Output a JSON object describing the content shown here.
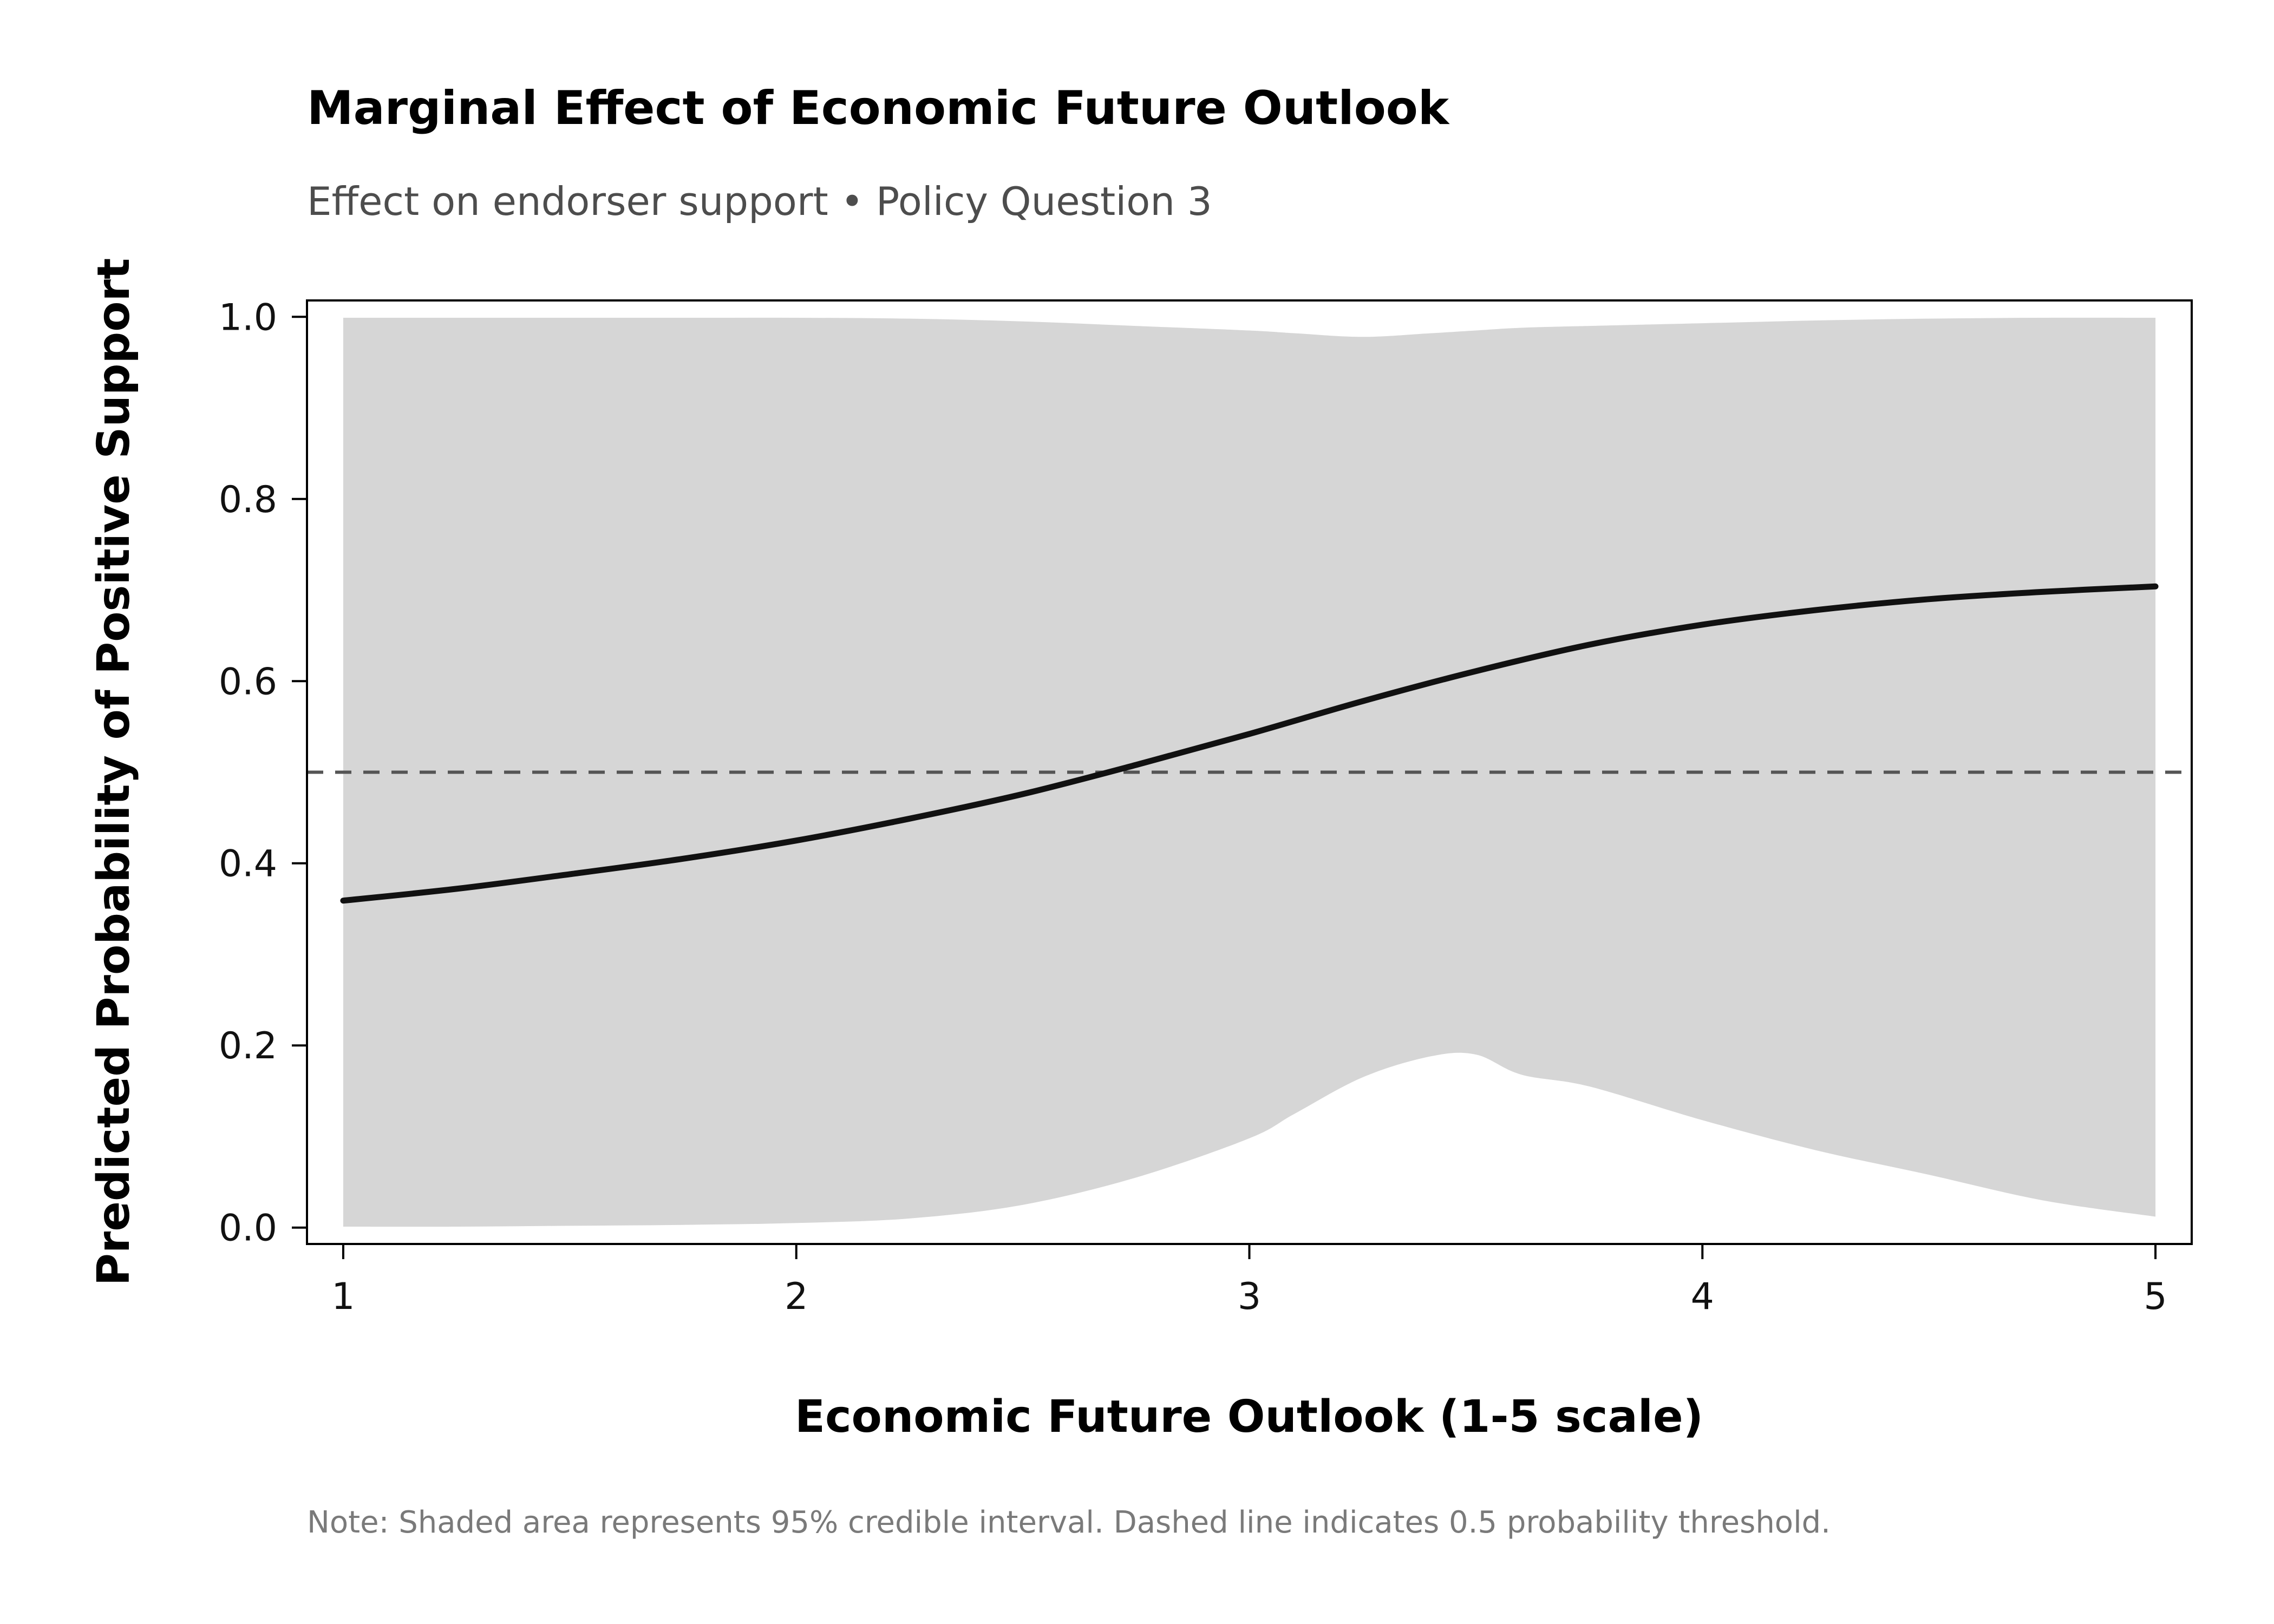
{
  "header": {
    "title": "Marginal Effect of Economic Future Outlook",
    "subtitle": "Effect on endorser support • Policy Question 3"
  },
  "footer": {
    "note": "Note: Shaded area represents 95% credible interval. Dashed line indicates 0.5 probability threshold."
  },
  "colors": {
    "line": "#111111",
    "band": "#d6d6d6",
    "threshold": "#555555",
    "axis": "#000000"
  },
  "chart_data": {
    "type": "line",
    "title": "Marginal Effect of Economic Future Outlook",
    "subtitle": "Effect on endorser support • Policy Question 3",
    "xlabel": "Economic Future Outlook (1-5 scale)",
    "ylabel": "Predicted Probability of Positive Support",
    "xlim": [
      0.92,
      5.08
    ],
    "ylim": [
      -0.018,
      1.018
    ],
    "x_ticks": [
      1,
      2,
      3,
      4,
      5
    ],
    "x_tick_labels": [
      "1",
      "2",
      "3",
      "4",
      "5"
    ],
    "y_ticks": [
      0.0,
      0.2,
      0.4,
      0.6,
      0.8,
      1.0
    ],
    "y_tick_labels": [
      "0.0",
      "0.2",
      "0.4",
      "0.6",
      "0.8",
      "1.0"
    ],
    "grid": false,
    "threshold": 0.5,
    "series": [
      {
        "role": "predicted probability",
        "x": [
          1.0,
          1.25,
          1.5,
          1.75,
          2.0,
          2.25,
          2.5,
          2.75,
          3.0,
          3.25,
          3.5,
          3.75,
          4.0,
          4.25,
          4.5,
          4.75,
          5.0
        ],
        "y": [
          0.359,
          0.372,
          0.388,
          0.405,
          0.425,
          0.449,
          0.476,
          0.508,
          0.542,
          0.578,
          0.611,
          0.64,
          0.662,
          0.678,
          0.69,
          0.698,
          0.704
        ]
      }
    ],
    "interval": {
      "role": "95% credible interval",
      "x": [
        1.0,
        1.25,
        1.5,
        1.75,
        2.0,
        2.25,
        2.5,
        2.75,
        3.0,
        3.1,
        3.25,
        3.4,
        3.5,
        3.6,
        3.75,
        4.0,
        4.25,
        4.5,
        4.75,
        5.0
      ],
      "lower": [
        0.001,
        0.001,
        0.002,
        0.003,
        0.005,
        0.01,
        0.025,
        0.055,
        0.098,
        0.125,
        0.165,
        0.188,
        0.19,
        0.168,
        0.155,
        0.118,
        0.085,
        0.058,
        0.03,
        0.012
      ],
      "upper": [
        0.999,
        0.999,
        0.999,
        0.999,
        0.999,
        0.998,
        0.995,
        0.99,
        0.985,
        0.982,
        0.978,
        0.982,
        0.985,
        0.988,
        0.99,
        0.993,
        0.996,
        0.998,
        0.999,
        0.999
      ]
    }
  }
}
